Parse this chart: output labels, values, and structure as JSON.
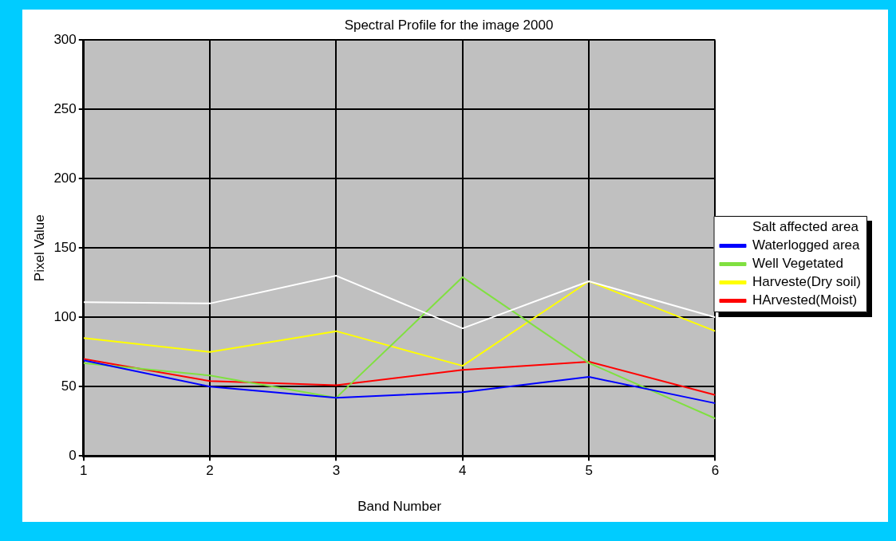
{
  "chart_data": {
    "type": "line",
    "title": "Spectral Profile for the image 2000",
    "xlabel": "Band Number",
    "ylabel": "Pixel Value",
    "x": [
      1,
      2,
      3,
      4,
      5,
      6
    ],
    "xlim": [
      1,
      6
    ],
    "xticks": [
      1,
      2,
      3,
      4,
      5,
      6
    ],
    "ylim": [
      0,
      300
    ],
    "yticks": [
      0,
      50,
      100,
      150,
      200,
      250,
      300
    ],
    "grid": true,
    "legend": "right",
    "marker": "none",
    "series": [
      {
        "name": "Salt affected area",
        "color": "#ffffff",
        "values": [
          111,
          110,
          130,
          92,
          126,
          100
        ]
      },
      {
        "name": "Waterlogged area",
        "color": "#0000ff",
        "values": [
          69,
          50,
          42,
          46,
          57,
          38
        ]
      },
      {
        "name": "Well Vegetated",
        "color": "#80e040",
        "values": [
          67,
          58,
          42,
          129,
          67,
          27
        ]
      },
      {
        "name": "Harveste(Dry soil)",
        "color": "#ffff00",
        "values": [
          85,
          75,
          90,
          65,
          126,
          90
        ]
      },
      {
        "name": "HArvested(Moist)",
        "color": "#ff0000",
        "values": [
          70,
          54,
          51,
          62,
          68,
          44
        ]
      }
    ]
  }
}
